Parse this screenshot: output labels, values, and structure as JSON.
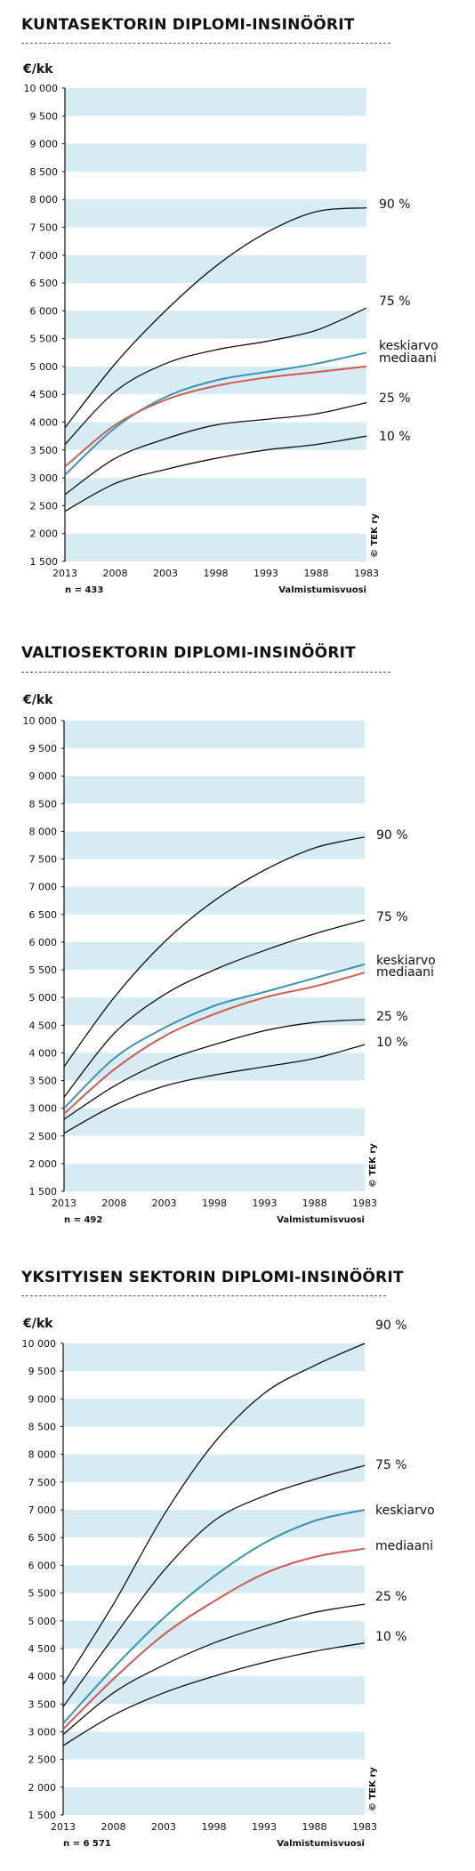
{
  "chart_data": [
    {
      "type": "line",
      "title": "KUNTASEKTORIN DIPLOMI-INSINÖÖRIT",
      "ylabel": "€/kk",
      "xlabel": "Valmistumisvuosi",
      "n_note": "n = 433",
      "copyright": "© TEK ry",
      "ylim": [
        1500,
        10000
      ],
      "yticks": [
        1500,
        2000,
        2500,
        3000,
        3500,
        4000,
        4500,
        5000,
        5500,
        6000,
        6500,
        7000,
        7500,
        8000,
        8500,
        9000,
        9500,
        10000
      ],
      "ytick_labels": [
        "1 500",
        "2 000",
        "2 500",
        "3 000",
        "3 500",
        "4 000",
        "4 500",
        "5 000",
        "5 500",
        "6 000",
        "6 500",
        "7 000",
        "7 500",
        "8 000",
        "8 500",
        "9 000",
        "9 500",
        "10 000"
      ],
      "x": [
        2013,
        2008,
        2003,
        1998,
        1993,
        1988,
        1983
      ],
      "x_ticks": [
        "2013",
        "2008",
        "2003",
        "1998",
        "1993",
        "1988",
        "1983"
      ],
      "banded_grid": true,
      "series": [
        {
          "name": "90 %",
          "color": "#111111",
          "values": [
            3900,
            5050,
            6000,
            6800,
            7400,
            7780,
            7850
          ]
        },
        {
          "name": "75 %",
          "color": "#111111",
          "values": [
            3600,
            4550,
            5050,
            5300,
            5450,
            5650,
            6050
          ]
        },
        {
          "name": "keskiarvo",
          "color": "#3a93b4",
          "values": [
            3050,
            3900,
            4450,
            4750,
            4900,
            5050,
            5250
          ]
        },
        {
          "name": "mediaani",
          "color": "#cf5a52",
          "values": [
            3200,
            3950,
            4400,
            4650,
            4800,
            4900,
            5000
          ]
        },
        {
          "name": "25 %",
          "color": "#111111",
          "values": [
            2700,
            3350,
            3700,
            3950,
            4050,
            4150,
            4350
          ]
        },
        {
          "name": "10 %",
          "color": "#111111",
          "values": [
            2400,
            2900,
            3150,
            3350,
            3500,
            3600,
            3750
          ]
        }
      ],
      "label_colors": [
        "#111111",
        "#111111",
        "#2a9bc0",
        "#d4457a",
        "#111111",
        "#111111"
      ]
    },
    {
      "type": "line",
      "title": "VALTIOSEKTORIN DIPLOMI-INSINÖÖRIT",
      "ylabel": "€/kk",
      "xlabel": "Valmistumisvuosi",
      "n_note": "n = 492",
      "copyright": "© TEK ry",
      "ylim": [
        1500,
        10000
      ],
      "yticks": [
        1500,
        2000,
        2500,
        3000,
        3500,
        4000,
        4500,
        5000,
        5500,
        6000,
        6500,
        7000,
        7500,
        8000,
        8500,
        9000,
        9500,
        10000
      ],
      "ytick_labels": [
        "1 500",
        "2 000",
        "2 500",
        "3 000",
        "3 500",
        "4 000",
        "4 500",
        "5 000",
        "5 500",
        "6 000",
        "6 500",
        "7 000",
        "7 500",
        "8 000",
        "8 500",
        "9 000",
        "9 500",
        "10 000"
      ],
      "x": [
        2013,
        2008,
        2003,
        1998,
        1993,
        1988,
        1983
      ],
      "x_ticks": [
        "2013",
        "2008",
        "2003",
        "1998",
        "1993",
        "1988",
        "1983"
      ],
      "banded_grid": true,
      "series": [
        {
          "name": "90 %",
          "color": "#111111",
          "values": [
            3750,
            5000,
            6000,
            6750,
            7300,
            7700,
            7900
          ]
        },
        {
          "name": "75 %",
          "color": "#111111",
          "values": [
            3200,
            4350,
            5050,
            5500,
            5850,
            6150,
            6400
          ]
        },
        {
          "name": "keskiarvo",
          "color": "#3a93b4",
          "values": [
            3000,
            3900,
            4450,
            4850,
            5100,
            5350,
            5600
          ]
        },
        {
          "name": "mediaani",
          "color": "#cf5a52",
          "values": [
            2900,
            3700,
            4300,
            4700,
            5000,
            5200,
            5450
          ]
        },
        {
          "name": "25 %",
          "color": "#111111",
          "values": [
            2800,
            3400,
            3850,
            4150,
            4400,
            4550,
            4600
          ]
        },
        {
          "name": "10 %",
          "color": "#111111",
          "values": [
            2550,
            3050,
            3400,
            3600,
            3750,
            3900,
            4150
          ]
        }
      ],
      "label_colors": [
        "#111111",
        "#111111",
        "#2a9bc0",
        "#d4457a",
        "#111111",
        "#111111"
      ]
    },
    {
      "type": "line",
      "title": "YKSITYISEN SEKTORIN DIPLOMI-INSINÖÖRIT",
      "ylabel": "€/kk",
      "xlabel": "Valmistumisvuosi",
      "n_note": "n = 6 571",
      "copyright": "© TEK ry",
      "ylim": [
        1500,
        10000
      ],
      "yticks": [
        1500,
        2000,
        2500,
        3000,
        3500,
        4000,
        4500,
        5000,
        5500,
        6000,
        6500,
        7000,
        7500,
        8000,
        8500,
        9000,
        9500,
        10000
      ],
      "ytick_labels": [
        "1 500",
        "2 000",
        "2 500",
        "3 000",
        "3 500",
        "4 000",
        "4 500",
        "5 000",
        "5 500",
        "6 000",
        "6 500",
        "7 000",
        "7 500",
        "8 000",
        "8 500",
        "9 000",
        "9 500",
        "10 000"
      ],
      "x": [
        2013,
        2008,
        2003,
        1998,
        1993,
        1988,
        1983
      ],
      "x_ticks": [
        "2013",
        "2008",
        "2003",
        "1998",
        "1993",
        "1988",
        "1983"
      ],
      "banded_grid": true,
      "series": [
        {
          "name": "90 %",
          "color": "#111111",
          "values": [
            3850,
            5300,
            6900,
            8200,
            9100,
            9600,
            10000
          ]
        },
        {
          "name": "75 %",
          "color": "#111111",
          "values": [
            3450,
            4700,
            5900,
            6800,
            7250,
            7550,
            7800
          ]
        },
        {
          "name": "keskiarvo",
          "color": "#3a93b4",
          "values": [
            3150,
            4150,
            5050,
            5800,
            6400,
            6800,
            7000
          ]
        },
        {
          "name": "mediaani",
          "color": "#cf5a52",
          "values": [
            3050,
            3950,
            4750,
            5350,
            5850,
            6150,
            6300
          ]
        },
        {
          "name": "25 %",
          "color": "#111111",
          "values": [
            2950,
            3700,
            4200,
            4600,
            4900,
            5150,
            5300
          ]
        },
        {
          "name": "10 %",
          "color": "#111111",
          "values": [
            2750,
            3300,
            3700,
            4000,
            4250,
            4450,
            4600
          ]
        }
      ],
      "label_colors": [
        "#111111",
        "#111111",
        "#2a9bc0",
        "#d4457a",
        "#111111",
        "#111111"
      ]
    }
  ]
}
